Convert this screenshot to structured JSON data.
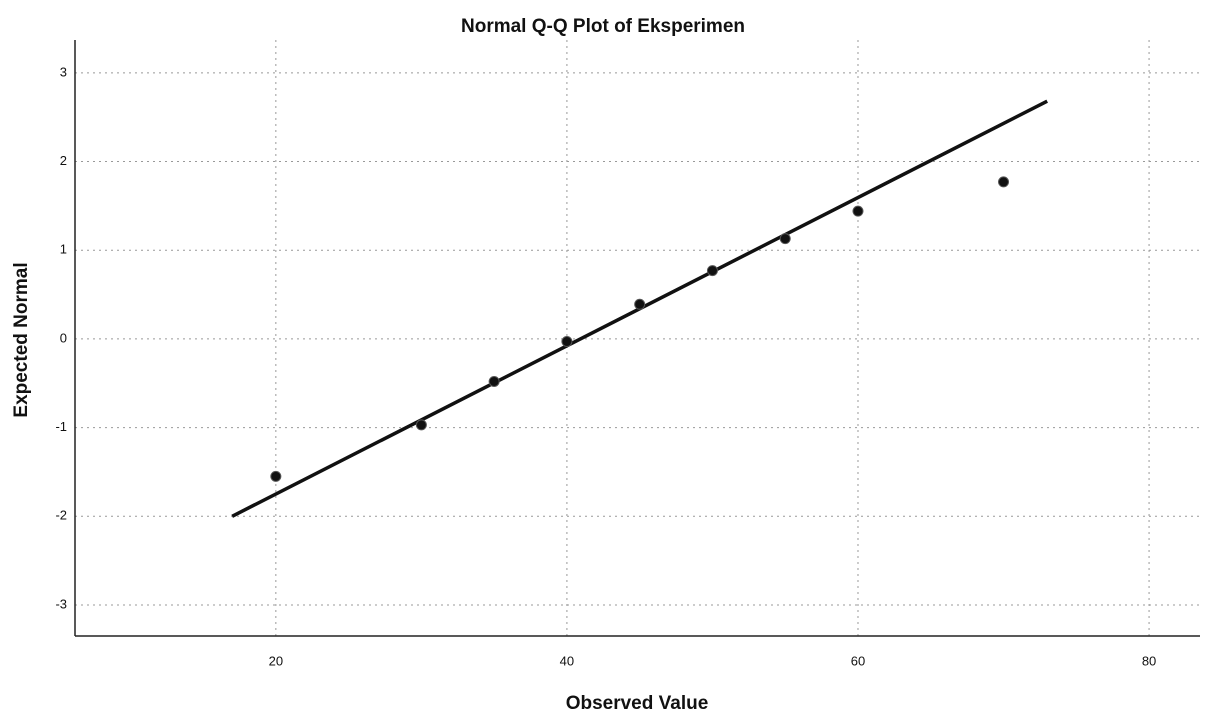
{
  "chart_data": {
    "type": "scatter",
    "title": "Normal Q-Q Plot of Eksperimen",
    "x_label": "Observed Value",
    "y_label": "Expected Normal",
    "points": {
      "color": "#111111",
      "x": [
        20,
        30,
        35,
        40,
        45,
        50,
        55,
        60,
        70
      ],
      "values": [
        -1.55,
        -0.97,
        -0.48,
        -0.03,
        0.39,
        0.77,
        1.13,
        1.44,
        1.77
      ]
    },
    "reference_line": {
      "color": "#111111",
      "x": [
        17,
        73
      ],
      "values": [
        -2.0,
        2.68
      ]
    },
    "xlim": [
      6.2,
      83.5
    ],
    "xticks": [
      20,
      40,
      60,
      80
    ],
    "ylim": [
      -3.35,
      3.37
    ],
    "yticks": [
      -3,
      -2,
      -1,
      0,
      1,
      2,
      3
    ],
    "grid": true
  }
}
